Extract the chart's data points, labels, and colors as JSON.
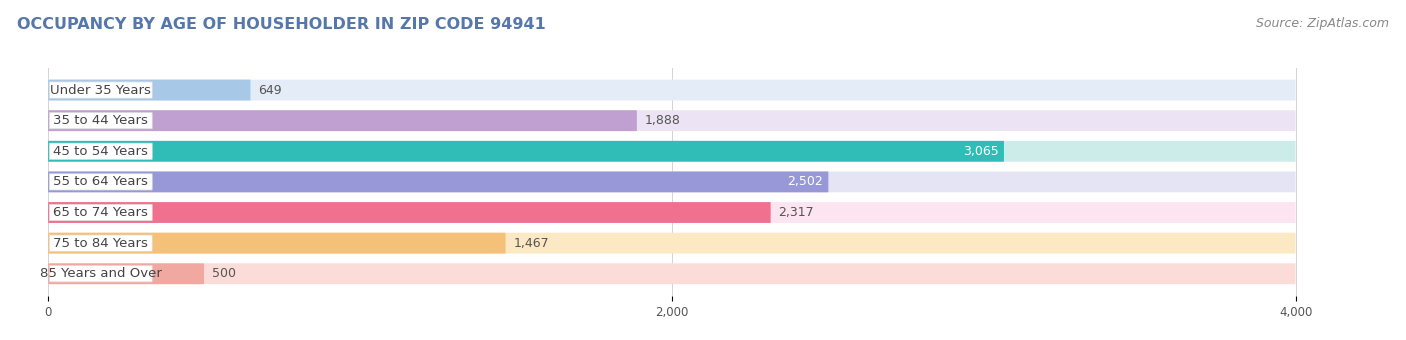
{
  "title": "OCCUPANCY BY AGE OF HOUSEHOLDER IN ZIP CODE 94941",
  "source": "Source: ZipAtlas.com",
  "categories": [
    "Under 35 Years",
    "35 to 44 Years",
    "45 to 54 Years",
    "55 to 64 Years",
    "65 to 74 Years",
    "75 to 84 Years",
    "85 Years and Over"
  ],
  "values": [
    649,
    1888,
    3065,
    2502,
    2317,
    1467,
    500
  ],
  "bar_colors": [
    "#a8c8e8",
    "#c0a0d0",
    "#30bdb8",
    "#9898d8",
    "#f07090",
    "#f5c078",
    "#f0a8a0"
  ],
  "bar_bg_colors": [
    "#e4ecf8",
    "#ece4f4",
    "#ccecea",
    "#e4e4f4",
    "#fce4f0",
    "#fde8c4",
    "#fcdcd8"
  ],
  "xlim": [
    -100,
    4300
  ],
  "xticks": [
    0,
    2000,
    4000
  ],
  "value_label_white": [
    false,
    false,
    true,
    true,
    false,
    false,
    false
  ],
  "title_fontsize": 11.5,
  "source_fontsize": 9,
  "label_fontsize": 9.5,
  "value_fontsize": 9,
  "background_color": "#ffffff",
  "row_bg_color": "#f0f0f0",
  "bar_height": 0.68,
  "row_sep": 0.18
}
